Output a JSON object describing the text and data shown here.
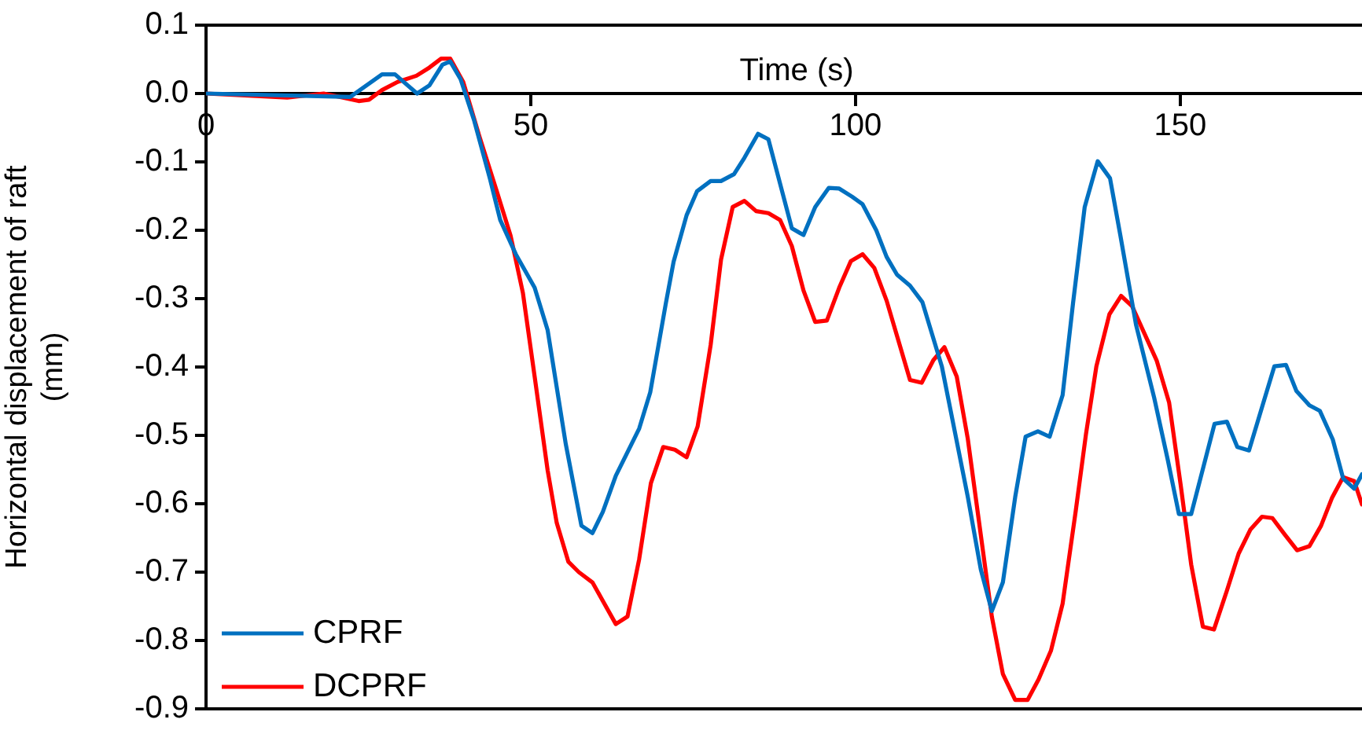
{
  "chart_data": {
    "type": "line",
    "xlabel": "Time (s)",
    "ylabel": "Horizontal displacement of raft (mm)",
    "xlim": [
      0,
      178
    ],
    "xticks": [
      0,
      50,
      100,
      150
    ],
    "ylim": [
      -0.9,
      0.1
    ],
    "yticks": [
      0.1,
      {
        "value": 0,
        "label": "0.0"
      },
      -0.1,
      -0.2,
      -0.3,
      -0.4,
      -0.5,
      -0.6,
      -0.7,
      -0.8,
      -0.9
    ],
    "grid": false,
    "legend": "bottom left",
    "marker": "none",
    "line_style": "solid",
    "series": [
      {
        "name": "CPRF",
        "color": "#0070c0",
        "x": [
          0,
          22.2,
          27.1,
          29.1,
          32.5,
          34.4,
          36.4,
          37.6,
          39.2,
          41.3,
          43.7,
          45.3,
          47.7,
          50.6,
          52.6,
          55.4,
          57.8,
          59.5,
          61.1,
          63.1,
          66.7,
          68.4,
          70.8,
          72.0,
          74.0,
          75.6,
          77.7,
          79.3,
          81.3,
          82.9,
          85.0,
          86.6,
          90.2,
          92.0,
          93.8,
          95.9,
          97.5,
          99.5,
          101.1,
          103.2,
          104.8,
          106.4,
          108.4,
          110.3,
          113.3,
          117.3,
          119.3,
          121.0,
          122.7,
          124.6,
          126.2,
          128.1,
          129.9,
          131.9,
          133.5,
          135.3,
          137.3,
          139.2,
          140.8,
          143.2,
          146.0,
          148.1,
          149.8,
          151.7,
          155.3,
          157.2,
          158.8,
          160.6,
          164.5,
          166.3,
          167.9,
          169.9,
          171.5,
          173.5,
          175.1,
          176.8,
          178
        ],
        "values": [
          0,
          -0.005,
          0.028,
          0.028,
          0.0,
          0.012,
          0.042,
          0.047,
          0.021,
          -0.04,
          -0.124,
          -0.185,
          -0.235,
          -0.284,
          -0.346,
          -0.513,
          -0.632,
          -0.643,
          -0.612,
          -0.559,
          -0.49,
          -0.437,
          -0.307,
          -0.246,
          -0.178,
          -0.143,
          -0.128,
          -0.128,
          -0.118,
          -0.094,
          -0.059,
          -0.067,
          -0.197,
          -0.207,
          -0.166,
          -0.138,
          -0.139,
          -0.151,
          -0.162,
          -0.2,
          -0.239,
          -0.265,
          -0.281,
          -0.305,
          -0.399,
          -0.59,
          -0.696,
          -0.757,
          -0.715,
          -0.59,
          -0.502,
          -0.494,
          -0.502,
          -0.441,
          -0.307,
          -0.166,
          -0.099,
          -0.124,
          -0.208,
          -0.338,
          -0.445,
          -0.536,
          -0.615,
          -0.615,
          -0.483,
          -0.48,
          -0.517,
          -0.522,
          -0.399,
          -0.397,
          -0.435,
          -0.456,
          -0.464,
          -0.506,
          -0.563,
          -0.578,
          -0.557
        ]
      },
      {
        "name": "DCPRF",
        "color": "#ff0000",
        "x": [
          0,
          12.5,
          18.1,
          23.5,
          25.1,
          27.1,
          29.5,
          32.4,
          34.4,
          36.2,
          37.6,
          39.6,
          42.1,
          44.9,
          46.9,
          48.8,
          50.6,
          52.6,
          54.0,
          55.8,
          57.4,
          59.5,
          63.1,
          64.9,
          66.7,
          68.5,
          70.4,
          72.2,
          74.0,
          75.7,
          77.7,
          79.3,
          81.1,
          82.9,
          84.7,
          86.6,
          88.4,
          90.2,
          92.0,
          93.8,
          95.6,
          97.5,
          99.3,
          101.1,
          102.9,
          104.8,
          106.6,
          108.4,
          110.2,
          112.0,
          113.7,
          115.6,
          117.3,
          121.0,
          122.7,
          124.6,
          126.5,
          128.2,
          130.1,
          131.9,
          133.9,
          135.5,
          137.1,
          139.1,
          140.9,
          142.6,
          144.4,
          146.4,
          148.3,
          150.1,
          151.7,
          153.5,
          155.2,
          157.2,
          159.0,
          160.8,
          162.6,
          164.2,
          166.1,
          168.0,
          169.9,
          171.7,
          173.4,
          175.1,
          176.8,
          178
        ],
        "values": [
          0,
          -0.006,
          0,
          -0.011,
          -0.009,
          0.005,
          0.017,
          0.026,
          0.038,
          0.051,
          0.051,
          0.017,
          -0.063,
          -0.147,
          -0.208,
          -0.292,
          -0.414,
          -0.551,
          -0.628,
          -0.685,
          -0.7,
          -0.715,
          -0.776,
          -0.765,
          -0.681,
          -0.57,
          -0.517,
          -0.521,
          -0.532,
          -0.487,
          -0.368,
          -0.243,
          -0.166,
          -0.157,
          -0.172,
          -0.175,
          -0.185,
          -0.223,
          -0.288,
          -0.334,
          -0.332,
          -0.284,
          -0.245,
          -0.235,
          -0.255,
          -0.303,
          -0.361,
          -0.419,
          -0.423,
          -0.39,
          -0.371,
          -0.414,
          -0.505,
          -0.765,
          -0.849,
          -0.887,
          -0.887,
          -0.857,
          -0.815,
          -0.746,
          -0.612,
          -0.498,
          -0.399,
          -0.323,
          -0.296,
          -0.311,
          -0.349,
          -0.391,
          -0.452,
          -0.574,
          -0.689,
          -0.78,
          -0.784,
          -0.727,
          -0.673,
          -0.638,
          -0.619,
          -0.621,
          -0.645,
          -0.668,
          -0.662,
          -0.632,
          -0.591,
          -0.561,
          -0.567,
          -0.601
        ]
      }
    ]
  }
}
